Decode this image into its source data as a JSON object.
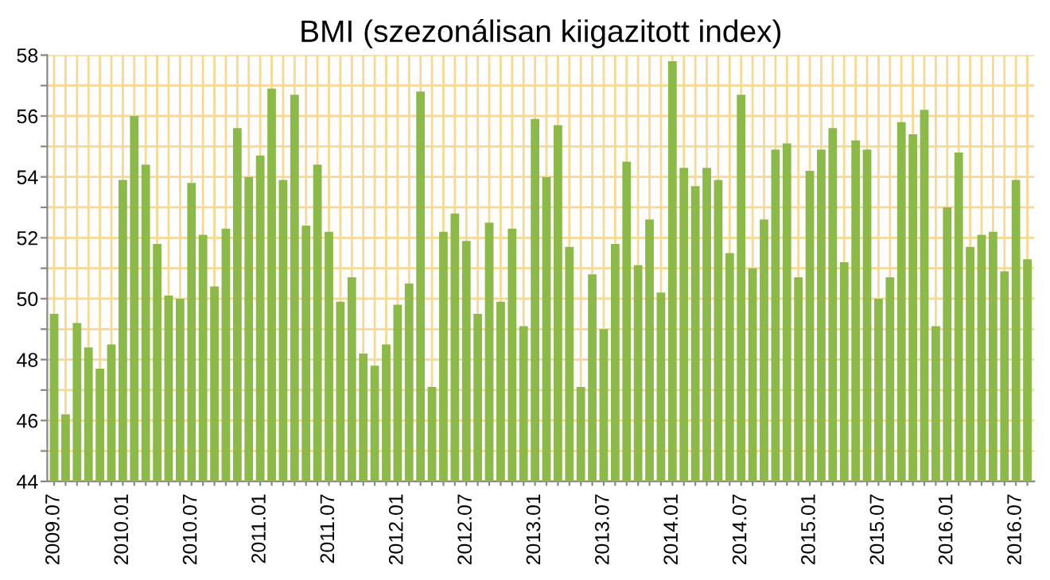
{
  "chart_data": {
    "type": "bar",
    "title": "BMI (szezonálisan kiigazitott index)",
    "categories": [
      "2009.07",
      null,
      null,
      null,
      null,
      null,
      "2010.01",
      null,
      null,
      null,
      null,
      null,
      "2010.07",
      null,
      null,
      null,
      null,
      null,
      "2011.01",
      null,
      null,
      null,
      null,
      null,
      "2011.07",
      null,
      null,
      null,
      null,
      null,
      "2012.01",
      null,
      null,
      null,
      null,
      null,
      "2012.07",
      null,
      null,
      null,
      null,
      null,
      "2013.01",
      null,
      null,
      null,
      null,
      null,
      "2013.07",
      null,
      null,
      null,
      null,
      null,
      "2014.01",
      null,
      null,
      null,
      null,
      null,
      "2014.07",
      null,
      null,
      null,
      null,
      null,
      "2015.01",
      null,
      null,
      null,
      null,
      null,
      "2015.07",
      null,
      null,
      null,
      null,
      null,
      "2016.01",
      null,
      null,
      null,
      null,
      null,
      "2016.07",
      null
    ],
    "values": [
      49.5,
      46.2,
      49.2,
      48.4,
      47.7,
      48.5,
      53.9,
      56.0,
      54.4,
      51.8,
      50.1,
      50.0,
      53.8,
      52.1,
      50.4,
      52.3,
      55.6,
      54.0,
      54.7,
      56.9,
      53.9,
      56.7,
      52.4,
      54.4,
      52.2,
      49.9,
      50.7,
      48.2,
      47.8,
      48.5,
      49.8,
      50.5,
      56.8,
      47.1,
      52.2,
      52.8,
      51.9,
      49.5,
      52.5,
      49.9,
      52.3,
      49.1,
      55.9,
      54.0,
      55.7,
      51.7,
      47.1,
      50.8,
      49.0,
      51.8,
      54.5,
      51.1,
      52.6,
      50.2,
      57.8,
      54.3,
      53.7,
      54.3,
      53.9,
      51.5,
      56.7,
      51.0,
      52.6,
      54.9,
      55.1,
      50.7,
      54.2,
      54.9,
      55.6,
      51.2,
      55.2,
      54.9,
      50.0,
      50.7,
      55.8,
      55.4,
      56.2,
      49.1,
      53.0,
      54.8,
      51.7,
      52.1,
      52.2,
      50.9,
      53.9,
      51.3
    ],
    "color": "#8cb94a",
    "ylim": [
      44,
      58
    ],
    "yticks": [
      44,
      {
        "value": 45,
        "label": null
      },
      46,
      {
        "value": 47,
        "label": null
      },
      48,
      {
        "value": 49,
        "label": null
      },
      50,
      {
        "value": 51,
        "label": null
      },
      52,
      {
        "value": 53,
        "label": null
      },
      54,
      {
        "value": 55,
        "label": null
      },
      56,
      {
        "value": 57,
        "label": null
      },
      58
    ],
    "grid": true
  }
}
